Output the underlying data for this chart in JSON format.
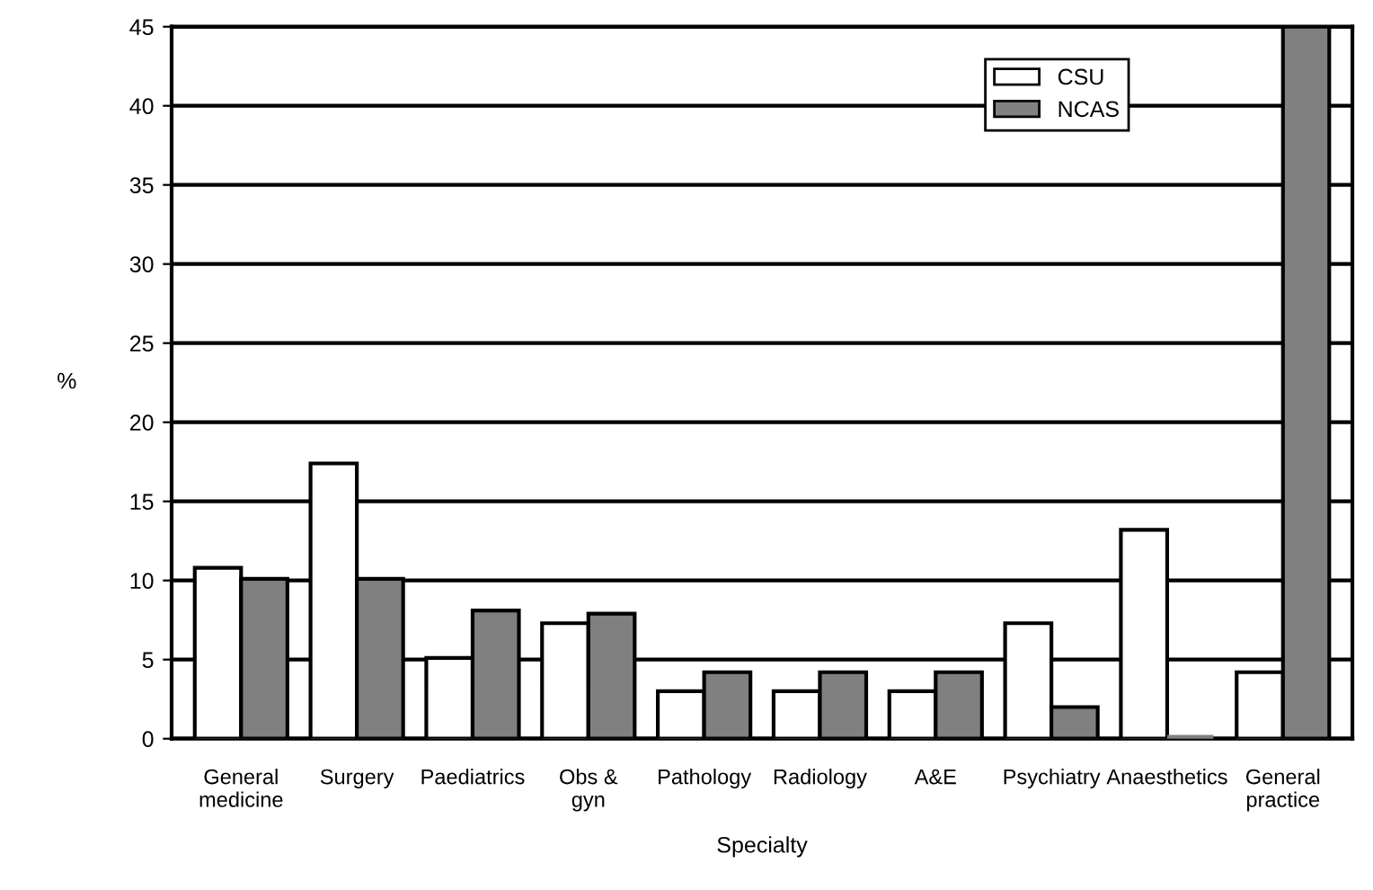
{
  "chart_data": {
    "type": "bar",
    "xlabel": "Specialty",
    "ylabel": "%",
    "categories": [
      "General\nmedicine",
      "Surgery",
      "Paediatrics",
      "Obs &\ngyn",
      "Pathology",
      "Radiology",
      "A&E",
      "Psychiatry",
      "Anaesthetics",
      "General\npractice"
    ],
    "series": [
      {
        "name": "CSU",
        "color": "#ffffff",
        "values": [
          10.8,
          17.4,
          5.1,
          7.3,
          3.0,
          3.0,
          3.0,
          7.3,
          13.2,
          4.2
        ]
      },
      {
        "name": "NCAS",
        "color": "#808080",
        "values": [
          10.1,
          10.1,
          8.1,
          7.9,
          4.2,
          4.2,
          4.2,
          2.0,
          0,
          45
        ]
      }
    ],
    "ylim": [
      0,
      45
    ],
    "yticks": [
      0,
      5,
      10,
      15,
      20,
      25,
      30,
      35,
      40,
      45
    ],
    "grid": "y",
    "legend": "top right"
  }
}
